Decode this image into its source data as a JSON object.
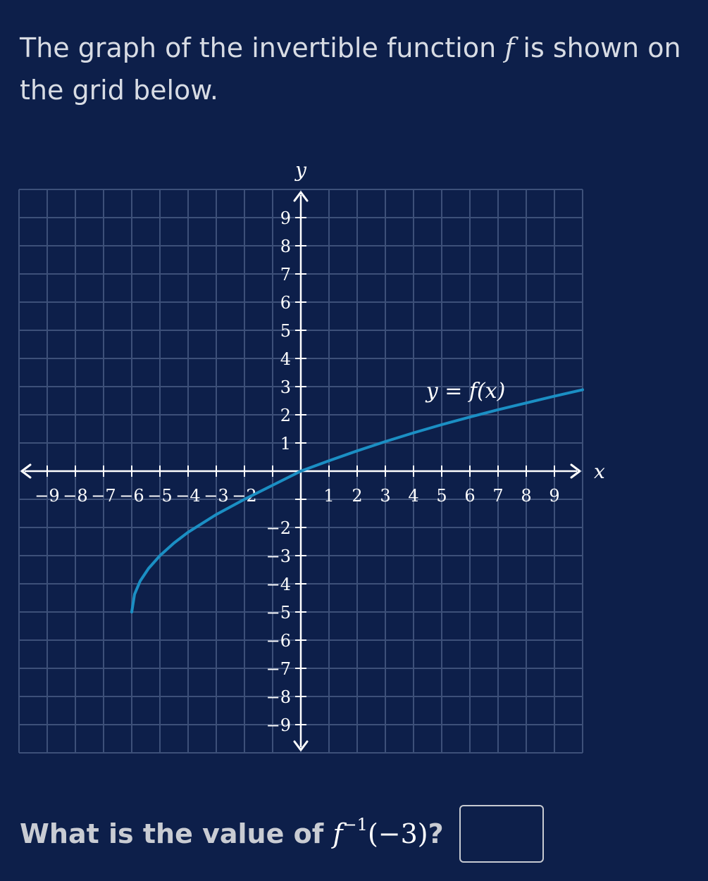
{
  "question": {
    "intro_before": "The graph of the invertible function ",
    "function_name": "f",
    "intro_after": " is shown on the grid below.",
    "prompt_before": "What is the value of ",
    "prompt_fn": "f",
    "prompt_exp": "−1",
    "prompt_arg": "(−3)",
    "prompt_after": "?",
    "answer_value": ""
  },
  "colors": {
    "background": "#0d1f4a",
    "grid": "#3d5079",
    "axis": "#ffffff",
    "curve": "#1b8fc4"
  },
  "chart_data": {
    "type": "line",
    "xlabel": "x",
    "ylabel": "y",
    "xlim": [
      -10,
      10
    ],
    "ylim": [
      -10,
      10
    ],
    "grid": true,
    "x_ticks": [
      -9,
      -8,
      -7,
      -6,
      -5,
      -4,
      -3,
      -2,
      1,
      2,
      3,
      4,
      5,
      6,
      7,
      8,
      9
    ],
    "y_ticks": [
      9,
      8,
      7,
      6,
      5,
      4,
      3,
      2,
      1,
      -2,
      -3,
      -4,
      -5,
      -6,
      -7,
      -8,
      -9
    ],
    "curve_label": "y = f(x)",
    "series": [
      {
        "x": [
          -6,
          -5.9,
          -5.7,
          -5.4,
          -5,
          -4.5,
          -4,
          -3,
          -2,
          -1,
          0,
          1,
          2,
          3,
          4,
          5,
          6,
          7,
          8,
          9,
          10
        ],
        "y": [
          -5,
          -4.37,
          -3.9,
          -3.45,
          -3.0,
          -2.55,
          -2.17,
          -1.54,
          -1.0,
          -0.5,
          0,
          0.37,
          0.72,
          1.05,
          1.36,
          1.65,
          1.92,
          2.18,
          2.42,
          2.66,
          2.89
        ]
      }
    ]
  }
}
